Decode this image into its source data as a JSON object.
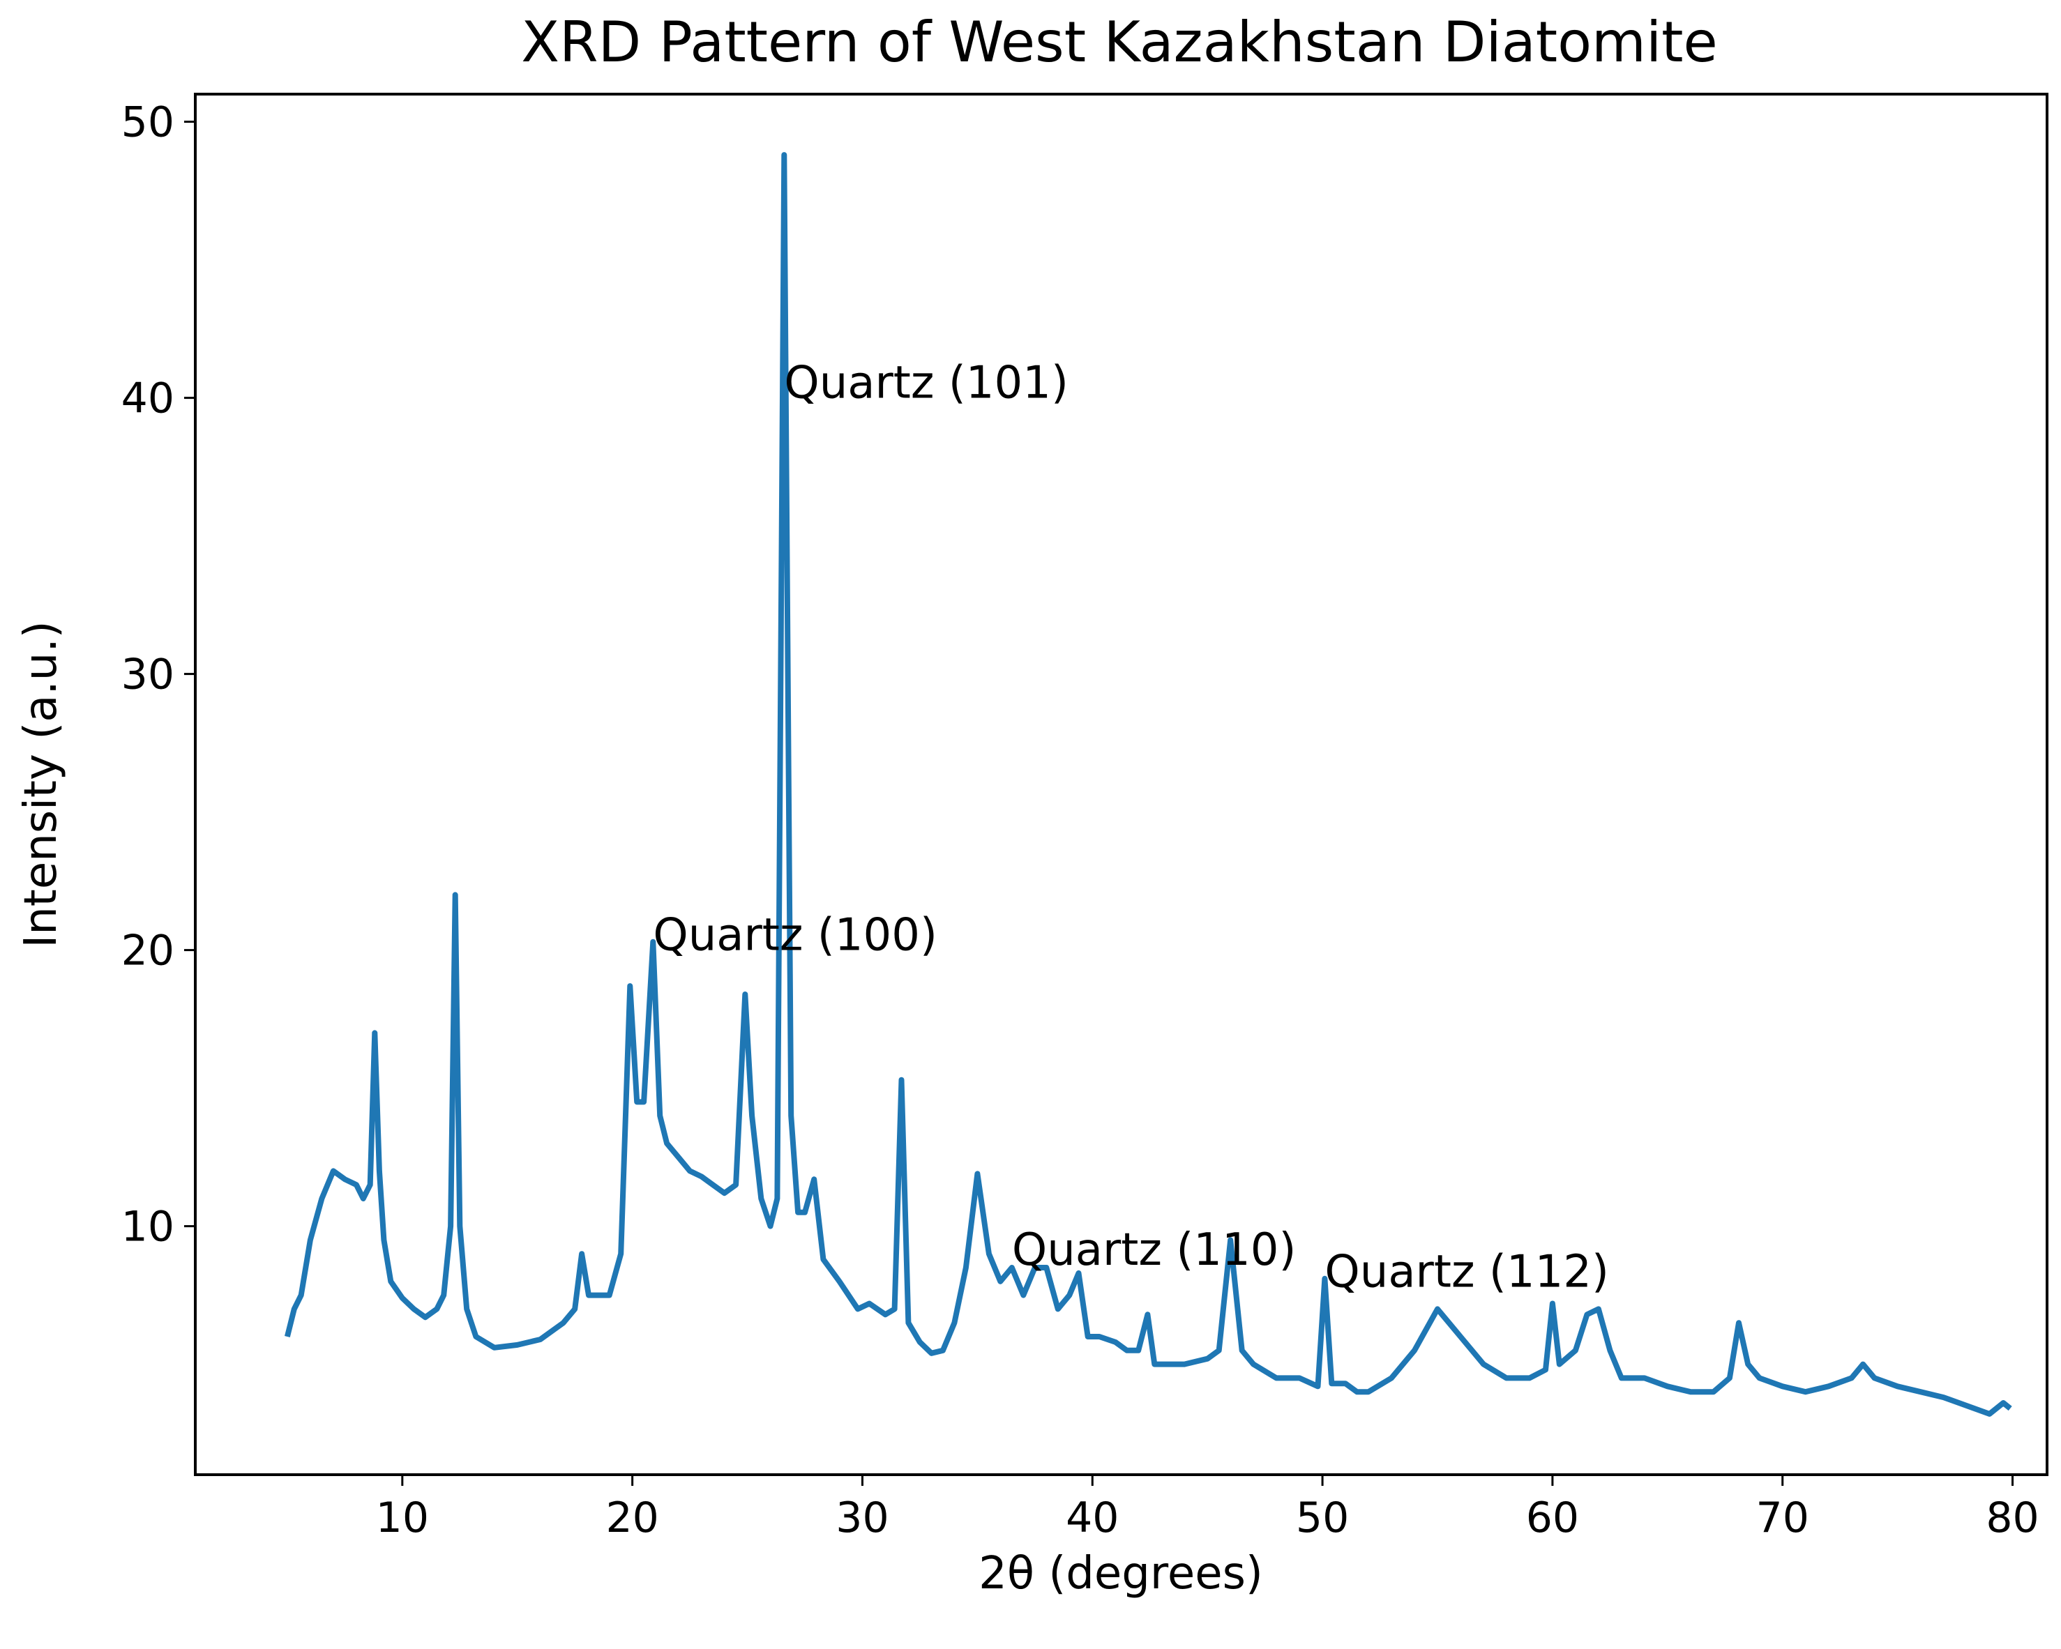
{
  "chart_data": {
    "type": "line",
    "title": "XRD Pattern of West Kazakhstan Diatomite",
    "xlabel": "2θ (degrees)",
    "ylabel": "Intensity (a.u.)",
    "xlim": [
      1,
      81.5
    ],
    "ylim": [
      1,
      51
    ],
    "xticks": [
      10,
      20,
      30,
      40,
      50,
      60,
      70,
      80
    ],
    "yticks": [
      10,
      20,
      30,
      40,
      50
    ],
    "grid": false,
    "line_color": "#1f77b4",
    "series": [
      {
        "x": [
          5.0,
          5.3,
          5.6,
          6.0,
          6.5,
          7.0,
          7.5,
          8.0,
          8.3,
          8.6,
          8.8,
          9.0,
          9.2,
          9.5,
          10.0,
          10.5,
          11.0,
          11.5,
          11.8,
          12.1,
          12.3,
          12.5,
          12.8,
          13.2,
          14.0,
          15.0,
          16.0,
          17.0,
          17.5,
          17.8,
          18.1,
          18.5,
          19.0,
          19.5,
          19.9,
          20.2,
          20.5,
          20.9,
          21.2,
          21.5,
          22.0,
          22.5,
          23.0,
          23.5,
          24.0,
          24.5,
          24.9,
          25.2,
          25.6,
          26.0,
          26.3,
          26.6,
          26.9,
          27.2,
          27.5,
          27.9,
          28.3,
          29.0,
          29.8,
          30.3,
          31.0,
          31.4,
          31.7,
          32.0,
          32.5,
          33.0,
          33.5,
          34.0,
          34.5,
          35.0,
          35.5,
          36.0,
          36.5,
          37.0,
          37.5,
          38.0,
          38.5,
          39.0,
          39.4,
          39.8,
          40.3,
          41.0,
          41.5,
          42.0,
          42.4,
          42.7,
          43.0,
          44.0,
          45.0,
          45.5,
          46.0,
          46.5,
          47.0,
          48.0,
          49.0,
          49.8,
          50.1,
          50.4,
          51.0,
          51.5,
          52.0,
          53.0,
          54.0,
          55.0,
          55.5,
          56.0,
          57.0,
          58.0,
          59.0,
          59.7,
          60.0,
          60.3,
          61.0,
          61.5,
          62.0,
          62.5,
          63.0,
          64.0,
          65.0,
          66.0,
          67.0,
          67.7,
          68.1,
          68.5,
          69.0,
          70.0,
          71.0,
          72.0,
          73.0,
          73.5,
          74.0,
          75.0,
          76.0,
          77.0,
          78.0,
          79.0,
          79.6,
          79.9
        ],
        "y": [
          6.0,
          7.0,
          7.5,
          9.5,
          11.0,
          12.0,
          11.7,
          11.5,
          11.0,
          11.5,
          17.0,
          12.0,
          9.5,
          8.0,
          7.4,
          7.0,
          6.7,
          7.0,
          7.5,
          10.0,
          22.0,
          10.0,
          7.0,
          6.0,
          5.6,
          5.7,
          5.9,
          6.5,
          7.0,
          9.0,
          7.5,
          7.5,
          7.5,
          9.0,
          18.7,
          14.5,
          14.5,
          20.3,
          14.0,
          13.0,
          12.5,
          12.0,
          11.8,
          11.5,
          11.2,
          11.5,
          18.4,
          14.0,
          11.0,
          10.0,
          11.0,
          48.8,
          14.0,
          10.5,
          10.5,
          11.7,
          8.8,
          8.0,
          7.0,
          7.2,
          6.8,
          7.0,
          15.3,
          6.5,
          5.8,
          5.4,
          5.5,
          6.5,
          8.5,
          11.9,
          9.0,
          8.0,
          8.5,
          7.5,
          8.5,
          8.5,
          7.0,
          7.5,
          8.3,
          6.0,
          6.0,
          5.8,
          5.5,
          5.5,
          6.8,
          5.0,
          5.0,
          5.0,
          5.2,
          5.5,
          9.5,
          5.5,
          5.0,
          4.5,
          4.5,
          4.2,
          8.1,
          4.3,
          4.3,
          4.0,
          4.0,
          4.5,
          5.5,
          7.0,
          6.5,
          6.0,
          5.0,
          4.5,
          4.5,
          4.8,
          7.2,
          5.0,
          5.5,
          6.8,
          7.0,
          5.5,
          4.5,
          4.5,
          4.2,
          4.0,
          4.0,
          4.5,
          6.5,
          5.0,
          4.5,
          4.2,
          4.0,
          4.2,
          4.5,
          5.0,
          4.5,
          4.2,
          4.0,
          3.8,
          3.5,
          3.2,
          3.6,
          3.4
        ]
      }
    ],
    "annotations": [
      {
        "text": "Quartz (101)",
        "x": 26.6,
        "y": 40.0
      },
      {
        "text": "Quartz (100)",
        "x": 20.9,
        "y": 20.0
      },
      {
        "text": "Quartz (110)",
        "x": 36.5,
        "y": 8.6
      },
      {
        "text": "Quartz (112)",
        "x": 50.1,
        "y": 7.8
      }
    ]
  }
}
